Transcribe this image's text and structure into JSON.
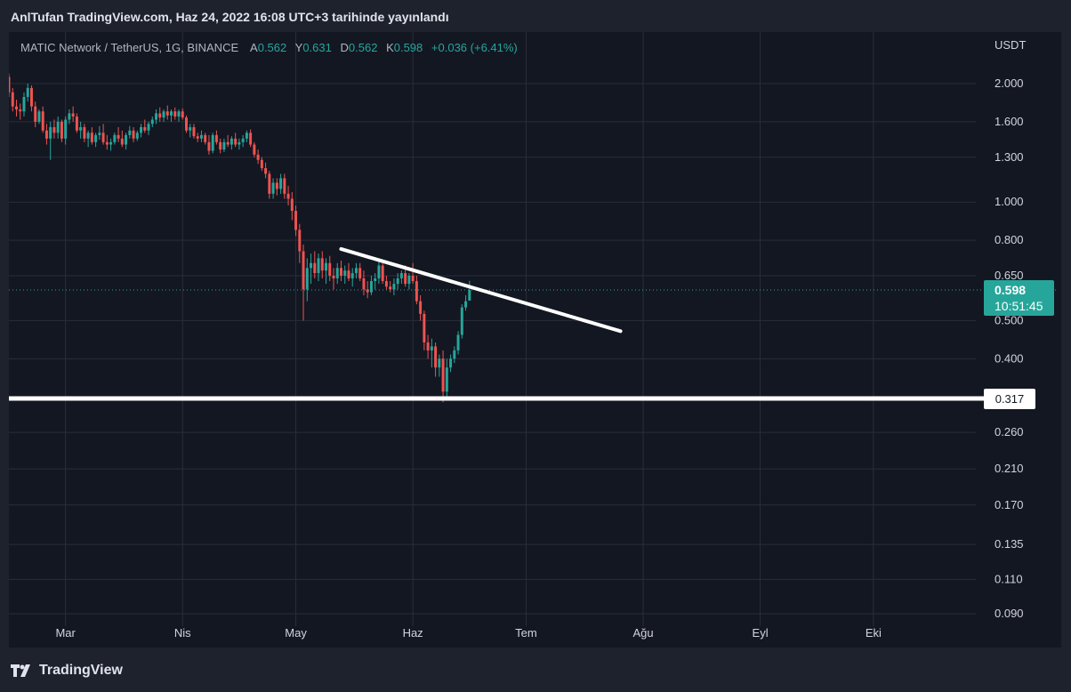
{
  "header": {
    "published": "AnlTufan TradingView.com, Haz 24, 2022 16:08 UTC+3 tarihinde yayınlandı"
  },
  "legend": {
    "symbol": "MATIC Network / TetherUS, 1G, BINANCE",
    "open_label": "A",
    "open": "0.562",
    "high_label": "Y",
    "high": "0.631",
    "low_label": "D",
    "low": "0.562",
    "close_label": "K",
    "close": "0.598",
    "change": "+0.036 (+6.41%)"
  },
  "currency": "USDT",
  "price_tag": {
    "price": "0.598",
    "countdown": "10:51:45"
  },
  "level_tag": "0.317",
  "footer": {
    "brand": "TradingView"
  },
  "colors": {
    "up": "#26a69a",
    "down": "#ef5350",
    "background": "#131722",
    "drawing": "#ffffff"
  },
  "chart_data": {
    "type": "candlestick",
    "y_scale": "log",
    "y_ticks": [
      "2.000",
      "1.600",
      "1.300",
      "1.000",
      "0.800",
      "0.650",
      "0.500",
      "0.400",
      "0.260",
      "0.210",
      "0.170",
      "0.135",
      "0.110",
      "0.090"
    ],
    "x_ticks": [
      "Mar",
      "Nis",
      "May",
      "Haz",
      "Tem",
      "Ağu",
      "Eyl",
      "Eki"
    ],
    "x_range": [
      "2022-02-14",
      "2022-10-30"
    ],
    "last_price": 0.598,
    "candles_first_date": "2022-02-14",
    "candles": [
      [
        2.08,
        2.12,
        1.85,
        1.9
      ],
      [
        1.9,
        1.95,
        1.7,
        1.75
      ],
      [
        1.75,
        1.82,
        1.65,
        1.72
      ],
      [
        1.72,
        1.78,
        1.62,
        1.7
      ],
      [
        1.7,
        1.9,
        1.65,
        1.85
      ],
      [
        1.85,
        2.0,
        1.8,
        1.95
      ],
      [
        1.95,
        1.98,
        1.7,
        1.75
      ],
      [
        1.75,
        1.8,
        1.55,
        1.6
      ],
      [
        1.6,
        1.72,
        1.58,
        1.7
      ],
      [
        1.7,
        1.75,
        1.5,
        1.52
      ],
      [
        1.52,
        1.58,
        1.4,
        1.45
      ],
      [
        1.45,
        1.6,
        1.28,
        1.55
      ],
      [
        1.55,
        1.62,
        1.45,
        1.5
      ],
      [
        1.5,
        1.65,
        1.45,
        1.6
      ],
      [
        1.6,
        1.62,
        1.42,
        1.45
      ],
      [
        1.45,
        1.65,
        1.4,
        1.62
      ],
      [
        1.62,
        1.72,
        1.58,
        1.68
      ],
      [
        1.68,
        1.75,
        1.6,
        1.65
      ],
      [
        1.65,
        1.68,
        1.5,
        1.52
      ],
      [
        1.52,
        1.6,
        1.45,
        1.55
      ],
      [
        1.55,
        1.58,
        1.42,
        1.45
      ],
      [
        1.45,
        1.52,
        1.38,
        1.5
      ],
      [
        1.5,
        1.55,
        1.4,
        1.42
      ],
      [
        1.42,
        1.5,
        1.38,
        1.48
      ],
      [
        1.48,
        1.56,
        1.44,
        1.5
      ],
      [
        1.5,
        1.58,
        1.4,
        1.42
      ],
      [
        1.42,
        1.48,
        1.36,
        1.4
      ],
      [
        1.4,
        1.45,
        1.35,
        1.42
      ],
      [
        1.42,
        1.5,
        1.4,
        1.48
      ],
      [
        1.48,
        1.55,
        1.42,
        1.45
      ],
      [
        1.45,
        1.52,
        1.38,
        1.4
      ],
      [
        1.4,
        1.5,
        1.36,
        1.48
      ],
      [
        1.48,
        1.56,
        1.45,
        1.52
      ],
      [
        1.52,
        1.55,
        1.42,
        1.45
      ],
      [
        1.45,
        1.52,
        1.43,
        1.5
      ],
      [
        1.5,
        1.58,
        1.46,
        1.55
      ],
      [
        1.55,
        1.62,
        1.5,
        1.52
      ],
      [
        1.52,
        1.6,
        1.48,
        1.58
      ],
      [
        1.58,
        1.65,
        1.55,
        1.62
      ],
      [
        1.62,
        1.72,
        1.58,
        1.68
      ],
      [
        1.68,
        1.74,
        1.6,
        1.64
      ],
      [
        1.64,
        1.72,
        1.6,
        1.7
      ],
      [
        1.7,
        1.76,
        1.62,
        1.66
      ],
      [
        1.66,
        1.72,
        1.6,
        1.7
      ],
      [
        1.7,
        1.74,
        1.62,
        1.65
      ],
      [
        1.65,
        1.72,
        1.6,
        1.7
      ],
      [
        1.7,
        1.73,
        1.62,
        1.64
      ],
      [
        1.64,
        1.66,
        1.5,
        1.52
      ],
      [
        1.52,
        1.58,
        1.46,
        1.55
      ],
      [
        1.55,
        1.58,
        1.45,
        1.47
      ],
      [
        1.47,
        1.5,
        1.42,
        1.45
      ],
      [
        1.45,
        1.52,
        1.42,
        1.48
      ],
      [
        1.48,
        1.5,
        1.4,
        1.42
      ],
      [
        1.42,
        1.48,
        1.32,
        1.35
      ],
      [
        1.35,
        1.5,
        1.33,
        1.48
      ],
      [
        1.48,
        1.52,
        1.4,
        1.42
      ],
      [
        1.42,
        1.45,
        1.33,
        1.36
      ],
      [
        1.36,
        1.45,
        1.34,
        1.42
      ],
      [
        1.42,
        1.48,
        1.38,
        1.4
      ],
      [
        1.4,
        1.47,
        1.36,
        1.45
      ],
      [
        1.45,
        1.5,
        1.38,
        1.4
      ],
      [
        1.4,
        1.45,
        1.36,
        1.42
      ],
      [
        1.42,
        1.48,
        1.38,
        1.45
      ],
      [
        1.45,
        1.52,
        1.42,
        1.5
      ],
      [
        1.5,
        1.53,
        1.38,
        1.4
      ],
      [
        1.4,
        1.42,
        1.3,
        1.32
      ],
      [
        1.32,
        1.36,
        1.25,
        1.28
      ],
      [
        1.28,
        1.3,
        1.2,
        1.22
      ],
      [
        1.22,
        1.26,
        1.15,
        1.18
      ],
      [
        1.18,
        1.2,
        1.02,
        1.05
      ],
      [
        1.05,
        1.15,
        1.02,
        1.12
      ],
      [
        1.12,
        1.15,
        1.04,
        1.08
      ],
      [
        1.08,
        1.18,
        1.05,
        1.15
      ],
      [
        1.15,
        1.18,
        1.02,
        1.05
      ],
      [
        1.05,
        1.1,
        0.98,
        1.02
      ],
      [
        1.02,
        1.06,
        0.9,
        0.95
      ],
      [
        0.95,
        0.98,
        0.82,
        0.85
      ],
      [
        0.85,
        0.88,
        0.7,
        0.75
      ],
      [
        0.75,
        0.78,
        0.5,
        0.6
      ],
      [
        0.6,
        0.72,
        0.56,
        0.68
      ],
      [
        0.68,
        0.74,
        0.62,
        0.7
      ],
      [
        0.7,
        0.75,
        0.64,
        0.66
      ],
      [
        0.66,
        0.74,
        0.63,
        0.72
      ],
      [
        0.72,
        0.75,
        0.64,
        0.67
      ],
      [
        0.67,
        0.72,
        0.62,
        0.7
      ],
      [
        0.7,
        0.73,
        0.63,
        0.65
      ],
      [
        0.65,
        0.68,
        0.6,
        0.64
      ],
      [
        0.64,
        0.7,
        0.62,
        0.68
      ],
      [
        0.68,
        0.71,
        0.63,
        0.65
      ],
      [
        0.65,
        0.69,
        0.62,
        0.67
      ],
      [
        0.67,
        0.7,
        0.63,
        0.64
      ],
      [
        0.64,
        0.68,
        0.61,
        0.66
      ],
      [
        0.66,
        0.7,
        0.64,
        0.68
      ],
      [
        0.68,
        0.7,
        0.63,
        0.64
      ],
      [
        0.64,
        0.67,
        0.58,
        0.6
      ],
      [
        0.6,
        0.63,
        0.57,
        0.59
      ],
      [
        0.59,
        0.65,
        0.58,
        0.63
      ],
      [
        0.63,
        0.66,
        0.6,
        0.64
      ],
      [
        0.64,
        0.71,
        0.62,
        0.69
      ],
      [
        0.69,
        0.7,
        0.62,
        0.63
      ],
      [
        0.63,
        0.65,
        0.6,
        0.61
      ],
      [
        0.61,
        0.63,
        0.59,
        0.6
      ],
      [
        0.6,
        0.64,
        0.58,
        0.62
      ],
      [
        0.62,
        0.66,
        0.6,
        0.64
      ],
      [
        0.64,
        0.67,
        0.62,
        0.66
      ],
      [
        0.66,
        0.69,
        0.61,
        0.62
      ],
      [
        0.62,
        0.66,
        0.6,
        0.65
      ],
      [
        0.65,
        0.7,
        0.62,
        0.63
      ],
      [
        0.63,
        0.65,
        0.55,
        0.56
      ],
      [
        0.56,
        0.58,
        0.5,
        0.52
      ],
      [
        0.52,
        0.53,
        0.42,
        0.44
      ],
      [
        0.44,
        0.46,
        0.4,
        0.42
      ],
      [
        0.42,
        0.45,
        0.38,
        0.43
      ],
      [
        0.43,
        0.44,
        0.36,
        0.38
      ],
      [
        0.38,
        0.41,
        0.36,
        0.4
      ],
      [
        0.4,
        0.42,
        0.31,
        0.33
      ],
      [
        0.33,
        0.4,
        0.32,
        0.38
      ],
      [
        0.38,
        0.41,
        0.37,
        0.4
      ],
      [
        0.4,
        0.43,
        0.39,
        0.42
      ],
      [
        0.42,
        0.47,
        0.41,
        0.46
      ],
      [
        0.46,
        0.55,
        0.45,
        0.54
      ],
      [
        0.54,
        0.58,
        0.53,
        0.56
      ],
      [
        0.562,
        0.631,
        0.562,
        0.598
      ]
    ],
    "drawings": [
      {
        "type": "trendline",
        "start": [
          "2022-05-13",
          0.76
        ],
        "end": [
          "2022-07-26",
          0.47
        ]
      },
      {
        "type": "horizontal-line",
        "value": 0.317
      }
    ],
    "last_price_line": 0.598
  }
}
